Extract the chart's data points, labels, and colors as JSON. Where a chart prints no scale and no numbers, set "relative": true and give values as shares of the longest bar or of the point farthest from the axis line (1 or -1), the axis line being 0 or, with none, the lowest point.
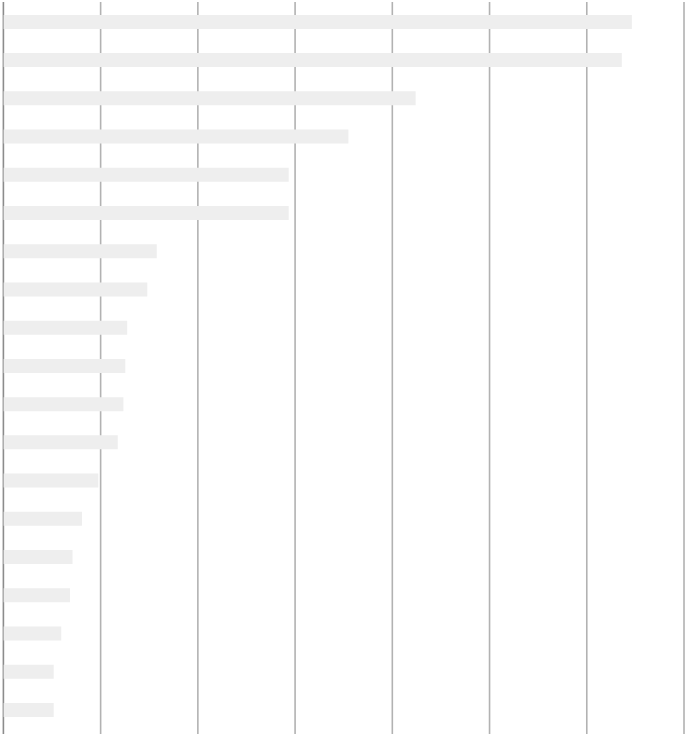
{
  "chart_data": {
    "type": "bar",
    "orientation": "horizontal",
    "relative": true,
    "grid": "x",
    "color": "#eeeeee",
    "categories": [
      null,
      null,
      null,
      null,
      null,
      null,
      null,
      null,
      null,
      null,
      null,
      null,
      null,
      null,
      null,
      null,
      null,
      null,
      null
    ],
    "values": [
      1,
      0.984,
      0.656,
      0.549,
      0.454,
      0.454,
      0.244,
      0.229,
      0.197,
      0.194,
      0.191,
      0.182,
      0.151,
      0.125,
      0.11,
      0.106,
      0.092,
      0.08,
      0.08
    ]
  }
}
